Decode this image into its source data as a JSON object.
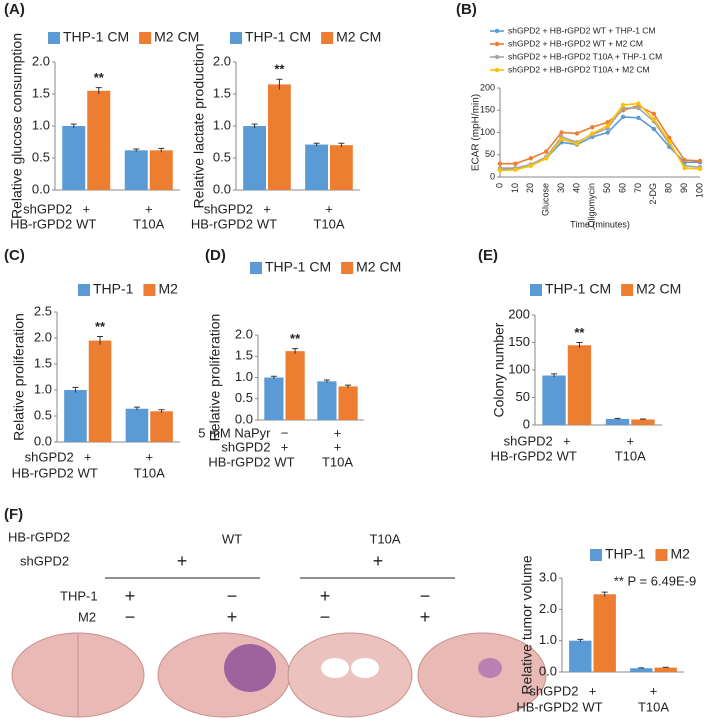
{
  "panel_labels": [
    "(A)",
    "(B)",
    "(C)",
    "(D)",
    "(E)",
    "(F)"
  ],
  "chart_data": [
    {
      "type": "bar",
      "y_label": "Relative glucose consumption",
      "categories": [
        "WT",
        "T10A"
      ],
      "category_label": "HB-rGPD2",
      "rows": [
        {
          "label": "shGPD2",
          "values": [
            "+",
            "+"
          ]
        }
      ],
      "series": [
        {
          "name": "THP-1 CM",
          "color": "#5b9bd5",
          "values": [
            1.0,
            0.62
          ],
          "errors": [
            0.03,
            0.02
          ]
        },
        {
          "name": "M2 CM",
          "color": "#ed7d31",
          "values": [
            1.55,
            0.62
          ],
          "errors": [
            0.05,
            0.03
          ]
        }
      ],
      "annotation": "**",
      "ylim": [
        0,
        2.0
      ],
      "yticks": [
        {
          "value": 0,
          "label": "0.0"
        },
        0.5,
        {
          "value": 1,
          "label": "1.0"
        },
        1.5,
        {
          "value": 2,
          "label": "2.0"
        }
      ]
    },
    {
      "type": "bar",
      "y_label": "Relative lactate production",
      "categories": [
        "WT",
        "T10A"
      ],
      "category_label": "HB-rGPD2",
      "rows": [
        {
          "label": "shGPD2",
          "values": [
            "+",
            "+"
          ]
        }
      ],
      "series": [
        {
          "name": "THP-1 CM",
          "color": "#5b9bd5",
          "values": [
            1.0,
            0.71
          ],
          "errors": [
            0.03,
            0.02
          ]
        },
        {
          "name": "M2 CM",
          "color": "#ed7d31",
          "values": [
            1.65,
            0.7
          ],
          "errors": [
            0.08,
            0.03
          ]
        }
      ],
      "annotation": "**",
      "ylim": [
        0,
        2.0
      ],
      "yticks": [
        {
          "value": 0,
          "label": "0.0"
        },
        0.5,
        {
          "value": 1,
          "label": "1.0"
        },
        1.5,
        {
          "value": 2,
          "label": "2.0"
        }
      ]
    },
    {
      "type": "line",
      "y_label": "ECAR (mpH/min)",
      "x_label": "Time (minutes)",
      "categories": [
        "0",
        "10",
        "20",
        "Glucose",
        "30",
        "40",
        "Oligomycin",
        "50",
        "60",
        "70",
        "2-DG",
        "80",
        "90",
        "100"
      ],
      "series": [
        {
          "name": "shGPD2 + HB-rGPD2  WT + THP-1 CM",
          "color": "#5b9bd5",
          "values": [
            17,
            18,
            27,
            42,
            78,
            73,
            90,
            100,
            135,
            133,
            108,
            68,
            33,
            33
          ]
        },
        {
          "name": "shGPD2 + HB-rGPD2  WT + M2 CM",
          "color": "#ed7d31",
          "values": [
            30,
            30,
            42,
            57,
            100,
            98,
            112,
            123,
            150,
            160,
            142,
            88,
            38,
            36
          ]
        },
        {
          "name": "shGPD2 + HB-rGPD2 T10A + THP-1 CM",
          "color": "#a5a5a5",
          "values": [
            20,
            20,
            28,
            45,
            90,
            78,
            95,
            110,
            155,
            155,
            125,
            75,
            25,
            22
          ]
        },
        {
          "name": "shGPD2 + HB-rGPD2 T10A + M2 CM",
          "color": "#ffc000",
          "values": [
            15,
            16,
            25,
            42,
            85,
            75,
            98,
            115,
            162,
            165,
            130,
            80,
            20,
            18
          ]
        }
      ],
      "ylim": [
        0,
        200
      ],
      "yticks": [
        0,
        50,
        100,
        150,
        200
      ]
    },
    {
      "type": "bar",
      "y_label": "Relative proliferation",
      "categories": [
        "WT",
        "T10A"
      ],
      "category_label": "HB-rGPD2",
      "rows": [
        {
          "label": "shGPD2",
          "values": [
            "+",
            "+"
          ]
        }
      ],
      "series": [
        {
          "name": "THP-1",
          "color": "#5b9bd5",
          "values": [
            1.0,
            0.64
          ],
          "errors": [
            0.05,
            0.03
          ]
        },
        {
          "name": "M2",
          "color": "#ed7d31",
          "values": [
            1.95,
            0.59
          ],
          "errors": [
            0.08,
            0.03
          ]
        }
      ],
      "annotation": "**",
      "ylim": [
        0,
        2.5
      ],
      "yticks": [
        {
          "value": 0,
          "label": "0.0"
        },
        0.5,
        {
          "value": 1,
          "label": "1.0"
        },
        1.5,
        {
          "value": 2,
          "label": "2.0"
        },
        2.5
      ]
    },
    {
      "type": "bar",
      "y_label": "Relative proliferation",
      "categories": [
        "WT",
        "T10A"
      ],
      "category_label": "HB-rGPD2",
      "rows": [
        {
          "label": "5 mM NaPyr",
          "values": [
            "−",
            "+"
          ]
        },
        {
          "label": "shGPD2",
          "values": [
            "+",
            "+"
          ]
        }
      ],
      "series": [
        {
          "name": "THP-1 CM",
          "color": "#5b9bd5",
          "values": [
            1.0,
            0.91
          ],
          "errors": [
            0.03,
            0.03
          ]
        },
        {
          "name": "M2 CM",
          "color": "#ed7d31",
          "values": [
            1.62,
            0.79
          ],
          "errors": [
            0.06,
            0.03
          ]
        }
      ],
      "annotation": "**",
      "ylim": [
        0,
        2.0
      ],
      "yticks": [
        {
          "value": 0,
          "label": "0.0"
        },
        0.5,
        {
          "value": 1,
          "label": "1.0"
        },
        1.5,
        {
          "value": 2,
          "label": "2.0"
        }
      ]
    },
    {
      "type": "bar",
      "y_label": "Colony number",
      "categories": [
        "WT",
        "T10A"
      ],
      "category_label": "HB-rGPD2",
      "rows": [
        {
          "label": "shGPD2",
          "values": [
            "+",
            "+"
          ]
        }
      ],
      "series": [
        {
          "name": "THP-1 CM",
          "color": "#5b9bd5",
          "values": [
            90,
            11
          ],
          "errors": [
            3,
            1
          ]
        },
        {
          "name": "M2 CM",
          "color": "#ed7d31",
          "values": [
            145,
            10
          ],
          "errors": [
            5,
            1
          ]
        }
      ],
      "annotation": "**",
      "ylim": [
        0,
        200
      ],
      "yticks": [
        0,
        50,
        100,
        150,
        200
      ]
    },
    {
      "type": "bar",
      "y_label": "Relative tumor volume",
      "categories": [
        "WT",
        "T10A"
      ],
      "category_label": "HB-rGPD2",
      "rows": [
        {
          "label": "shGPD2",
          "values": [
            "+",
            "+"
          ]
        }
      ],
      "series": [
        {
          "name": "THP-1",
          "color": "#5b9bd5",
          "values": [
            1.0,
            0.12
          ],
          "errors": [
            0.04,
            0.01
          ]
        },
        {
          "name": "M2",
          "color": "#ed7d31",
          "values": [
            2.48,
            0.14
          ],
          "errors": [
            0.07,
            0.01
          ]
        }
      ],
      "annotation": "** P = 6.49E-9",
      "ylim": [
        0,
        3.0
      ],
      "yticks": [
        {
          "value": 0,
          "label": "0.0"
        },
        {
          "value": 1,
          "label": "1.0"
        },
        {
          "value": 2,
          "label": "2.0"
        },
        {
          "value": 3,
          "label": "3.0"
        }
      ]
    }
  ],
  "design": {
    "row_labels": [
      "HB-rGPD2",
      "shGPD2",
      "THP-1",
      "M2"
    ],
    "groups": [
      {
        "genotype": "WT",
        "sh": "+",
        "thp_1": [
          "+",
          "−"
        ],
        "m2": [
          "−",
          "+"
        ]
      },
      {
        "genotype": "T10A",
        "sh": "+",
        "thp_1": [
          "+",
          "−"
        ],
        "m2": [
          "−",
          "+"
        ]
      }
    ]
  }
}
